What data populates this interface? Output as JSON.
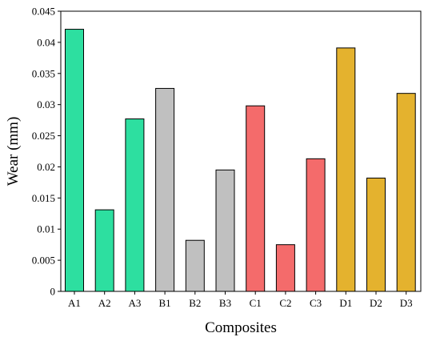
{
  "chart_data": {
    "type": "bar",
    "title": "",
    "xlabel": "Composites",
    "ylabel": "Wear (mm)",
    "ylim": [
      0,
      0.045
    ],
    "yticks": [
      "0",
      "0.005",
      "0.01",
      "0.015",
      "0.02",
      "0.025",
      "0.03",
      "0.035",
      "0.04",
      "0.045"
    ],
    "categories": [
      "A1",
      "A2",
      "A3",
      "B1",
      "B2",
      "B3",
      "C1",
      "C2",
      "C3",
      "D1",
      "D2",
      "D3"
    ],
    "values": [
      0.0421,
      0.0131,
      0.0277,
      0.0326,
      0.0082,
      0.0195,
      0.0298,
      0.0075,
      0.0213,
      0.0391,
      0.0182,
      0.0318
    ],
    "bar_colors": [
      "#2ddfa0",
      "#2ddfa0",
      "#2ddfa0",
      "#c0c0c0",
      "#c0c0c0",
      "#c0c0c0",
      "#f46b6b",
      "#f46b6b",
      "#f46b6b",
      "#e4b22e",
      "#e4b22e",
      "#e4b22e"
    ],
    "grid": false,
    "legend": "none"
  }
}
